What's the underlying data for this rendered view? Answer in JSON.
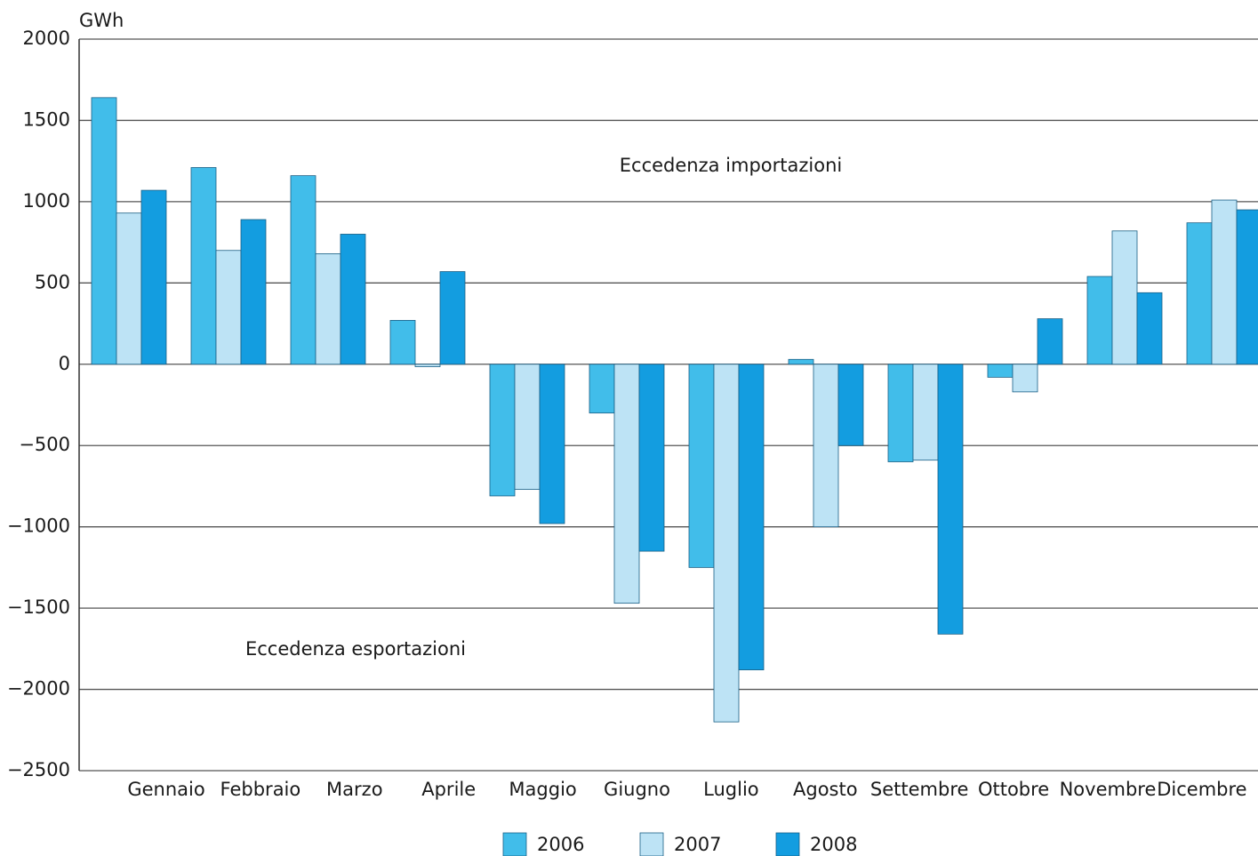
{
  "chart_data": {
    "type": "bar",
    "y_label": "GWh",
    "annotations": [
      "Eccedenza importazioni",
      "Eccedenza esportazioni"
    ],
    "categories": [
      "Gennaio",
      "Febbraio",
      "Marzo",
      "Aprile",
      "Maggio",
      "Giugno",
      "Luglio",
      "Agosto",
      "Settembre",
      "Ottobre",
      "Novembre",
      "Dicembre"
    ],
    "series": [
      {
        "name": "2006",
        "color": "#41bdea",
        "values": [
          1640,
          1210,
          1160,
          270,
          -810,
          -300,
          -1250,
          30,
          -600,
          -80,
          540,
          870
        ]
      },
      {
        "name": "2007",
        "color": "#bde3f5",
        "values": [
          930,
          700,
          680,
          -15,
          -770,
          -1470,
          -2200,
          -1000,
          -590,
          -170,
          820,
          1010
        ]
      },
      {
        "name": "2008",
        "color": "#139de0",
        "values": [
          1070,
          890,
          800,
          570,
          -980,
          -1150,
          -1880,
          -500,
          -1660,
          280,
          440,
          950
        ]
      }
    ],
    "ylim": [
      -2500,
      2000
    ],
    "yticks": [
      {
        "value": -2500,
        "label": "−2500"
      },
      {
        "value": -2000,
        "label": "−2000"
      },
      {
        "value": -1500,
        "label": "−1500"
      },
      {
        "value": -1000,
        "label": "−1000"
      },
      {
        "value": -500,
        "label": "−500"
      },
      0,
      500,
      1000,
      1500,
      2000
    ],
    "grid": true,
    "legend": "bottom"
  }
}
